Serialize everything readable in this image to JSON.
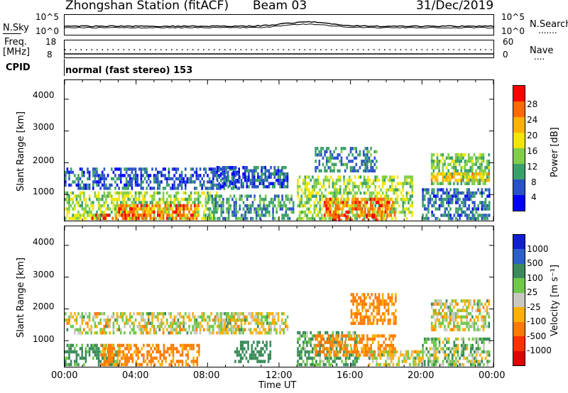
{
  "header": {
    "station_title": "Zhongshan Station (fitACF)",
    "beam": "Beam 03",
    "date": "31/Dec/2019"
  },
  "strip_panels": {
    "nsky": {
      "label": "N.Sky",
      "ticks": [
        "10^5",
        "10^0"
      ],
      "right_ticks": [
        "10^5",
        "10^0"
      ],
      "right_label": "N.Search",
      "right_marker": "......."
    },
    "freq": {
      "label_line1": "Freq.",
      "label_line2": "[MHz]",
      "ticks": [
        "18",
        "8"
      ],
      "right_ticks": [
        "60",
        "0"
      ],
      "right_label": "Nave",
      "right_marker": "...."
    },
    "cpid": {
      "label": "CPID",
      "mode_text": "normal (fast stereo) 153"
    }
  },
  "time_axis": {
    "ticks": [
      "00:00",
      "04:00",
      "08:00",
      "12:00",
      "16:00",
      "20:00",
      "00:00"
    ],
    "label": "Time UT"
  },
  "panels": [
    {
      "name": "power",
      "ylabel": "Slant Range [km]",
      "yticks": [
        "4000",
        "3000",
        "2000",
        "1000"
      ],
      "colorbar_label": "Power [dB]",
      "colorbar_ticks": [
        "28",
        "24",
        "20",
        "16",
        "12",
        "8",
        "4"
      ]
    },
    {
      "name": "velocity",
      "ylabel": "Slant Range [km]",
      "yticks": [
        "4000",
        "3000",
        "2000",
        "1000"
      ],
      "colorbar_label": "Velocity [m s⁻¹]",
      "colorbar_ticks": [
        "1000",
        "500",
        "100",
        "25",
        "-25",
        "-100",
        "-500",
        "-1000"
      ]
    }
  ],
  "colors": {
    "power_scale": [
      "#0000ff",
      "#2a52c8",
      "#3aa06a",
      "#7fce4a",
      "#f2e600",
      "#ffb200",
      "#ff6a00",
      "#ff0000"
    ],
    "velocity_scale": [
      "#1020d0",
      "#2a60c8",
      "#3a8a5a",
      "#6fc84a",
      "#c8c8c0",
      "#ffb000",
      "#ff7a00",
      "#ff3000",
      "#e00000"
    ]
  },
  "chart_data": [
    {
      "type": "heatmap",
      "title": "Power [dB]",
      "xlabel": "Time UT",
      "ylabel": "Slant Range [km]",
      "xlim_hours": [
        0,
        24
      ],
      "ylim_km": [
        180,
        4600
      ],
      "clim": [
        0,
        30
      ],
      "clusters": [
        {
          "t": [
            0.0,
            9.8
          ],
          "r": [
            1200,
            1850
          ],
          "v": 6
        },
        {
          "t": [
            0.0,
            8.5
          ],
          "r": [
            250,
            1100
          ],
          "v": 14
        },
        {
          "t": [
            3.0,
            7.5
          ],
          "r": [
            250,
            700
          ],
          "v": 24
        },
        {
          "t": [
            1.5,
            4.5
          ],
          "r": [
            200,
            400
          ],
          "v": 26
        },
        {
          "t": [
            8.5,
            12.5
          ],
          "r": [
            1250,
            1900
          ],
          "v": 6
        },
        {
          "t": [
            8.0,
            12.8
          ],
          "r": [
            250,
            1000
          ],
          "v": 9
        },
        {
          "t": [
            13.0,
            19.5
          ],
          "r": [
            200,
            1600
          ],
          "v": 14
        },
        {
          "t": [
            14.5,
            18.5
          ],
          "r": [
            300,
            900
          ],
          "v": 24
        },
        {
          "t": [
            15.0,
            18.0
          ],
          "r": [
            200,
            350
          ],
          "v": 27
        },
        {
          "t": [
            14.0,
            17.5
          ],
          "r": [
            1700,
            2500
          ],
          "v": 8
        },
        {
          "t": [
            20.5,
            23.8
          ],
          "r": [
            1300,
            2300
          ],
          "v": 12
        },
        {
          "t": [
            20.5,
            23.8
          ],
          "r": [
            1450,
            1700
          ],
          "v": 19
        },
        {
          "t": [
            20.0,
            23.8
          ],
          "r": [
            200,
            1200
          ],
          "v": 7
        }
      ]
    },
    {
      "type": "heatmap",
      "title": "Velocity [m s⁻¹]",
      "xlabel": "Time UT",
      "ylabel": "Slant Range [km]",
      "xlim_hours": [
        0,
        24
      ],
      "ylim_km": [
        180,
        4600
      ],
      "clim": [
        -1000,
        1000
      ],
      "clusters": [
        {
          "t": [
            0.0,
            9.8
          ],
          "r": [
            1200,
            1900
          ],
          "v": 0
        },
        {
          "t": [
            0.0,
            3.0
          ],
          "r": [
            250,
            900
          ],
          "v": 150
        },
        {
          "t": [
            2.0,
            7.5
          ],
          "r": [
            250,
            900
          ],
          "v": -150
        },
        {
          "t": [
            8.5,
            12.5
          ],
          "r": [
            1250,
            1900
          ],
          "v": 0
        },
        {
          "t": [
            9.5,
            11.5
          ],
          "r": [
            300,
            1000
          ],
          "v": 300
        },
        {
          "t": [
            13.0,
            16.5
          ],
          "r": [
            200,
            1300
          ],
          "v": 120
        },
        {
          "t": [
            14.0,
            18.5
          ],
          "r": [
            500,
            1200
          ],
          "v": -150
        },
        {
          "t": [
            16.0,
            18.5
          ],
          "r": [
            1500,
            2500
          ],
          "v": -150
        },
        {
          "t": [
            17.0,
            20.0
          ],
          "r": [
            250,
            700
          ],
          "v": 0
        },
        {
          "t": [
            20.5,
            23.8
          ],
          "r": [
            1300,
            2300
          ],
          "v": 0
        },
        {
          "t": [
            20.0,
            23.8
          ],
          "r": [
            200,
            1100
          ],
          "v": 60
        }
      ]
    }
  ]
}
